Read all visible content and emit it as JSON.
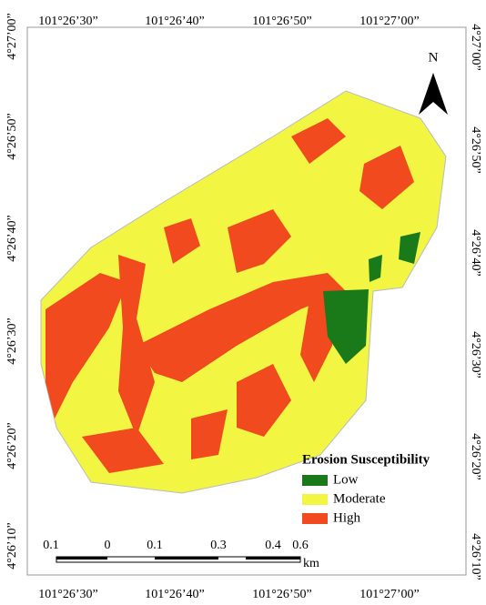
{
  "top_labels": [
    "101°26’30”",
    "101°26’40”",
    "101°26’50”",
    "101°27’00”"
  ],
  "bottom_labels": [
    "101°26’30”",
    "101°26’40”",
    "101°26’50”",
    "101°27’00”"
  ],
  "left_labels": [
    "4°27’00”",
    "4°26’50”",
    "4°26’40”",
    "4°26’30”",
    "4°26’20”",
    "4°26’10”"
  ],
  "right_labels": [
    "4°27’00”",
    "4°26’50”",
    "4°26’40”",
    "4°26’30”",
    "4°26’20”",
    "4°26’10”"
  ],
  "north": "N",
  "legend": {
    "title": "Erosion Susceptibility",
    "items": [
      {
        "label": "Low",
        "color": "#1a7a1a"
      },
      {
        "label": "Moderate",
        "color": "#f2f542"
      },
      {
        "label": "High",
        "color": "#f04a1e"
      }
    ]
  },
  "scale_bar": {
    "labels": [
      "0.1",
      "0",
      "0.1",
      "0.3",
      "0.4",
      "0.6"
    ],
    "unit": "km"
  }
}
